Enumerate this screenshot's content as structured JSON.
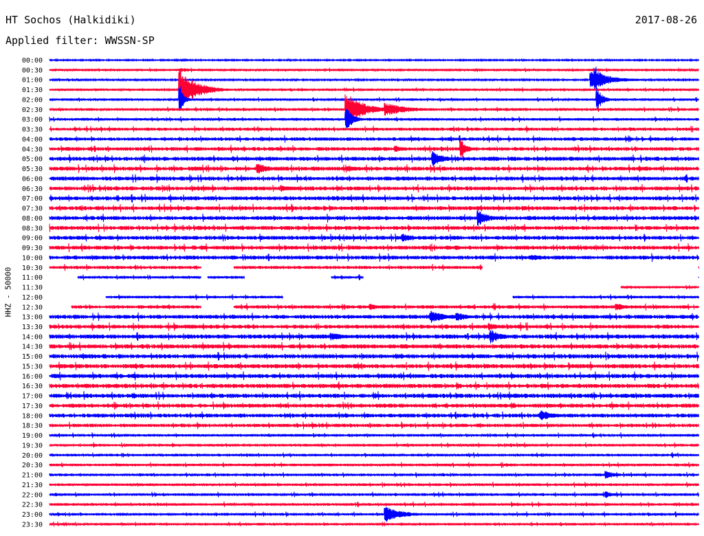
{
  "header": {
    "station": "HT Sochos (Halkidiki)",
    "date": "2017-08-26",
    "filter": "Applied filter: WWSSN-SP"
  },
  "channel_label": "HHZ - 50000",
  "colors": {
    "even_trace": "#0000ff",
    "odd_trace": "#ff0033",
    "background": "#ffffff"
  },
  "chart_data": {
    "type": "line",
    "title": "HT Sochos (Halkidiki)",
    "subtitle": "Applied filter: WWSSN-SP",
    "date": "2017-08-26",
    "ylabel": "HHZ - 50000",
    "row_minutes": 30,
    "tick_labels": [
      "00:00",
      "00:30",
      "01:00",
      "01:30",
      "02:00",
      "02:30",
      "03:00",
      "03:30",
      "04:00",
      "04:30",
      "05:00",
      "05:30",
      "06:00",
      "06:30",
      "07:00",
      "07:30",
      "08:00",
      "08:30",
      "09:00",
      "09:30",
      "10:00",
      "10:30",
      "11:00",
      "11:30",
      "12:00",
      "12:30",
      "13:00",
      "13:30",
      "14:00",
      "14:30",
      "15:00",
      "15:30",
      "16:00",
      "16:30",
      "17:00",
      "17:30",
      "18:00",
      "18:30",
      "19:00",
      "19:30",
      "20:00",
      "20:30",
      "21:00",
      "21:30",
      "22:00",
      "22:30",
      "23:00",
      "23:30"
    ],
    "noise_level": [
      1.0,
      1.5,
      1.2,
      1.6,
      1.7,
      2.0,
      2.0,
      2.4,
      2.6,
      2.8,
      3.0,
      3.0,
      3.0,
      3.0,
      3.0,
      3.0,
      3.0,
      3.0,
      3.0,
      3.0,
      3.0,
      2.4,
      2.0,
      1.6,
      2.0,
      2.6,
      3.0,
      3.0,
      3.2,
      3.2,
      3.2,
      3.2,
      3.2,
      3.2,
      3.2,
      3.0,
      3.0,
      2.6,
      2.0,
      2.0,
      2.0,
      2.0,
      2.0,
      2.0,
      2.0,
      2.0,
      2.0,
      1.8
    ],
    "events": [
      {
        "row": 1,
        "minute": 6.0,
        "amp": 3,
        "dur": 2.0
      },
      {
        "row": 2,
        "minute": 25.0,
        "amp": 12,
        "dur": 2.0
      },
      {
        "row": 2,
        "minute": 25.2,
        "amp": 20,
        "dur": 0.8
      },
      {
        "row": 3,
        "minute": 6.3,
        "amp": 20,
        "dur": 1.5
      },
      {
        "row": 3,
        "minute": 6.0,
        "amp": 40,
        "dur": 0.5
      },
      {
        "row": 4,
        "minute": 6.0,
        "amp": 20,
        "dur": 0.4
      },
      {
        "row": 4,
        "minute": 25.3,
        "amp": 18,
        "dur": 0.5
      },
      {
        "row": 5,
        "minute": 13.7,
        "amp": 25,
        "dur": 1.5
      },
      {
        "row": 5,
        "minute": 15.5,
        "amp": 10,
        "dur": 2.0
      },
      {
        "row": 6,
        "minute": 13.7,
        "amp": 20,
        "dur": 0.6
      },
      {
        "row": 9,
        "minute": 16.0,
        "amp": 5,
        "dur": 1.0
      },
      {
        "row": 9,
        "minute": 19.0,
        "amp": 14,
        "dur": 0.6
      },
      {
        "row": 10,
        "minute": 17.7,
        "amp": 12,
        "dur": 1.0
      },
      {
        "row": 11,
        "minute": 9.6,
        "amp": 8,
        "dur": 1.2
      },
      {
        "row": 11,
        "minute": 13.8,
        "amp": 5,
        "dur": 1.2
      },
      {
        "row": 13,
        "minute": 10.7,
        "amp": 5,
        "dur": 1.5
      },
      {
        "row": 16,
        "minute": 19.8,
        "amp": 12,
        "dur": 1.0
      },
      {
        "row": 18,
        "minute": 16.3,
        "amp": 7,
        "dur": 1.0
      },
      {
        "row": 20,
        "minute": 22.3,
        "amp": 5,
        "dur": 1.0
      },
      {
        "row": 25,
        "minute": 14.8,
        "amp": 5,
        "dur": 1.0
      },
      {
        "row": 25,
        "minute": 26.2,
        "amp": 6,
        "dur": 1.0
      },
      {
        "row": 26,
        "minute": 17.6,
        "amp": 9,
        "dur": 1.5
      },
      {
        "row": 26,
        "minute": 18.8,
        "amp": 8,
        "dur": 1.0
      },
      {
        "row": 27,
        "minute": 20.3,
        "amp": 6,
        "dur": 1.0
      },
      {
        "row": 28,
        "minute": 20.4,
        "amp": 10,
        "dur": 1.0
      },
      {
        "row": 28,
        "minute": 13.0,
        "amp": 6,
        "dur": 1.5
      },
      {
        "row": 36,
        "minute": 22.7,
        "amp": 8,
        "dur": 1.2
      },
      {
        "row": 42,
        "minute": 25.7,
        "amp": 6,
        "dur": 1.0
      },
      {
        "row": 44,
        "minute": 25.7,
        "amp": 5,
        "dur": 1.0
      },
      {
        "row": 46,
        "minute": 15.5,
        "amp": 12,
        "dur": 1.5
      }
    ],
    "gaps": [
      {
        "row": 21,
        "from": 7.0,
        "to": 8.5
      },
      {
        "row": 21,
        "from": 20.0,
        "to": 30.0
      },
      {
        "row": 22,
        "from": 0.0,
        "to": 1.3
      },
      {
        "row": 22,
        "from": 7.0,
        "to": 7.3
      },
      {
        "row": 22,
        "from": 9.0,
        "to": 13.0
      },
      {
        "row": 22,
        "from": 14.5,
        "to": 30.0
      },
      {
        "row": 23,
        "from": 0.0,
        "to": 26.4
      },
      {
        "row": 24,
        "from": 0.0,
        "to": 2.6
      },
      {
        "row": 24,
        "from": 10.8,
        "to": 21.4
      },
      {
        "row": 25,
        "from": 0.0,
        "to": 1.0
      },
      {
        "row": 25,
        "from": 7.0,
        "to": 8.5
      }
    ]
  }
}
